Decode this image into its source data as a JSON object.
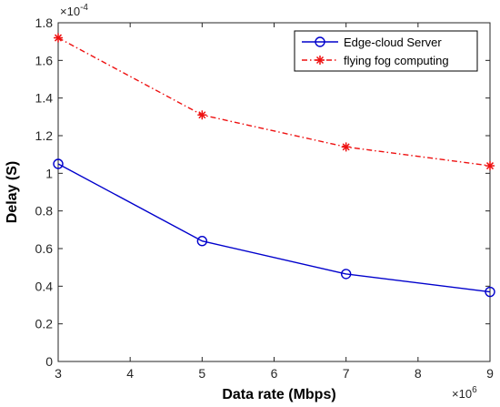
{
  "chart_data": {
    "type": "line",
    "xlabel": "Data rate (Mbps)",
    "ylabel": "Delay (S)",
    "x_exponent": {
      "base": "×10",
      "power": "6"
    },
    "y_exponent": {
      "base": "×10",
      "power": "-4"
    },
    "xlim": [
      3,
      9
    ],
    "ylim": [
      0,
      1.8
    ],
    "x_ticks": [
      "3",
      "4",
      "5",
      "6",
      "7",
      "8",
      "9"
    ],
    "y_ticks": [
      "0",
      "0.2",
      "0.4",
      "0.6",
      "0.8",
      "1",
      "1.2",
      "1.4",
      "1.6",
      "1.8"
    ],
    "x": [
      3,
      5,
      7,
      9
    ],
    "series": [
      {
        "name": "Edge-cloud Server",
        "values": [
          1.05,
          0.64,
          0.465,
          0.37
        ],
        "color": "#0000cc",
        "marker": "circle",
        "line": "solid"
      },
      {
        "name": "flying fog computing",
        "values": [
          1.72,
          1.31,
          1.14,
          1.04
        ],
        "color": "#ee1111",
        "marker": "asterisk",
        "line": "dash-dot"
      }
    ],
    "grid": false,
    "legend_position": "top-right"
  }
}
